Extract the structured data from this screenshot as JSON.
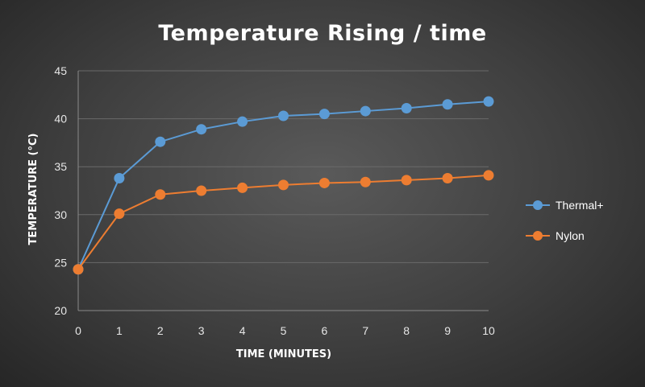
{
  "chart_data": {
    "type": "line",
    "title": "Temperature  Rising  / time",
    "xlabel": "TIME (MINUTES)",
    "ylabel": "TEMPERATURE (°C)",
    "x": [
      0,
      1,
      2,
      3,
      4,
      5,
      6,
      7,
      8,
      9,
      10
    ],
    "xlim": [
      0,
      10
    ],
    "ylim": [
      20,
      45
    ],
    "y_ticks": [
      20,
      25,
      30,
      35,
      40,
      45
    ],
    "grid": true,
    "legend_position": "right",
    "series": [
      {
        "name": "Thermal+",
        "color": "#5b9bd5",
        "values": [
          24.3,
          33.8,
          37.6,
          38.9,
          39.7,
          40.3,
          40.5,
          40.8,
          41.1,
          41.5,
          41.8
        ]
      },
      {
        "name": "Nylon",
        "color": "#ed7d31",
        "values": [
          24.3,
          30.1,
          32.1,
          32.5,
          32.8,
          33.1,
          33.3,
          33.4,
          33.6,
          33.8,
          34.1
        ]
      }
    ]
  }
}
